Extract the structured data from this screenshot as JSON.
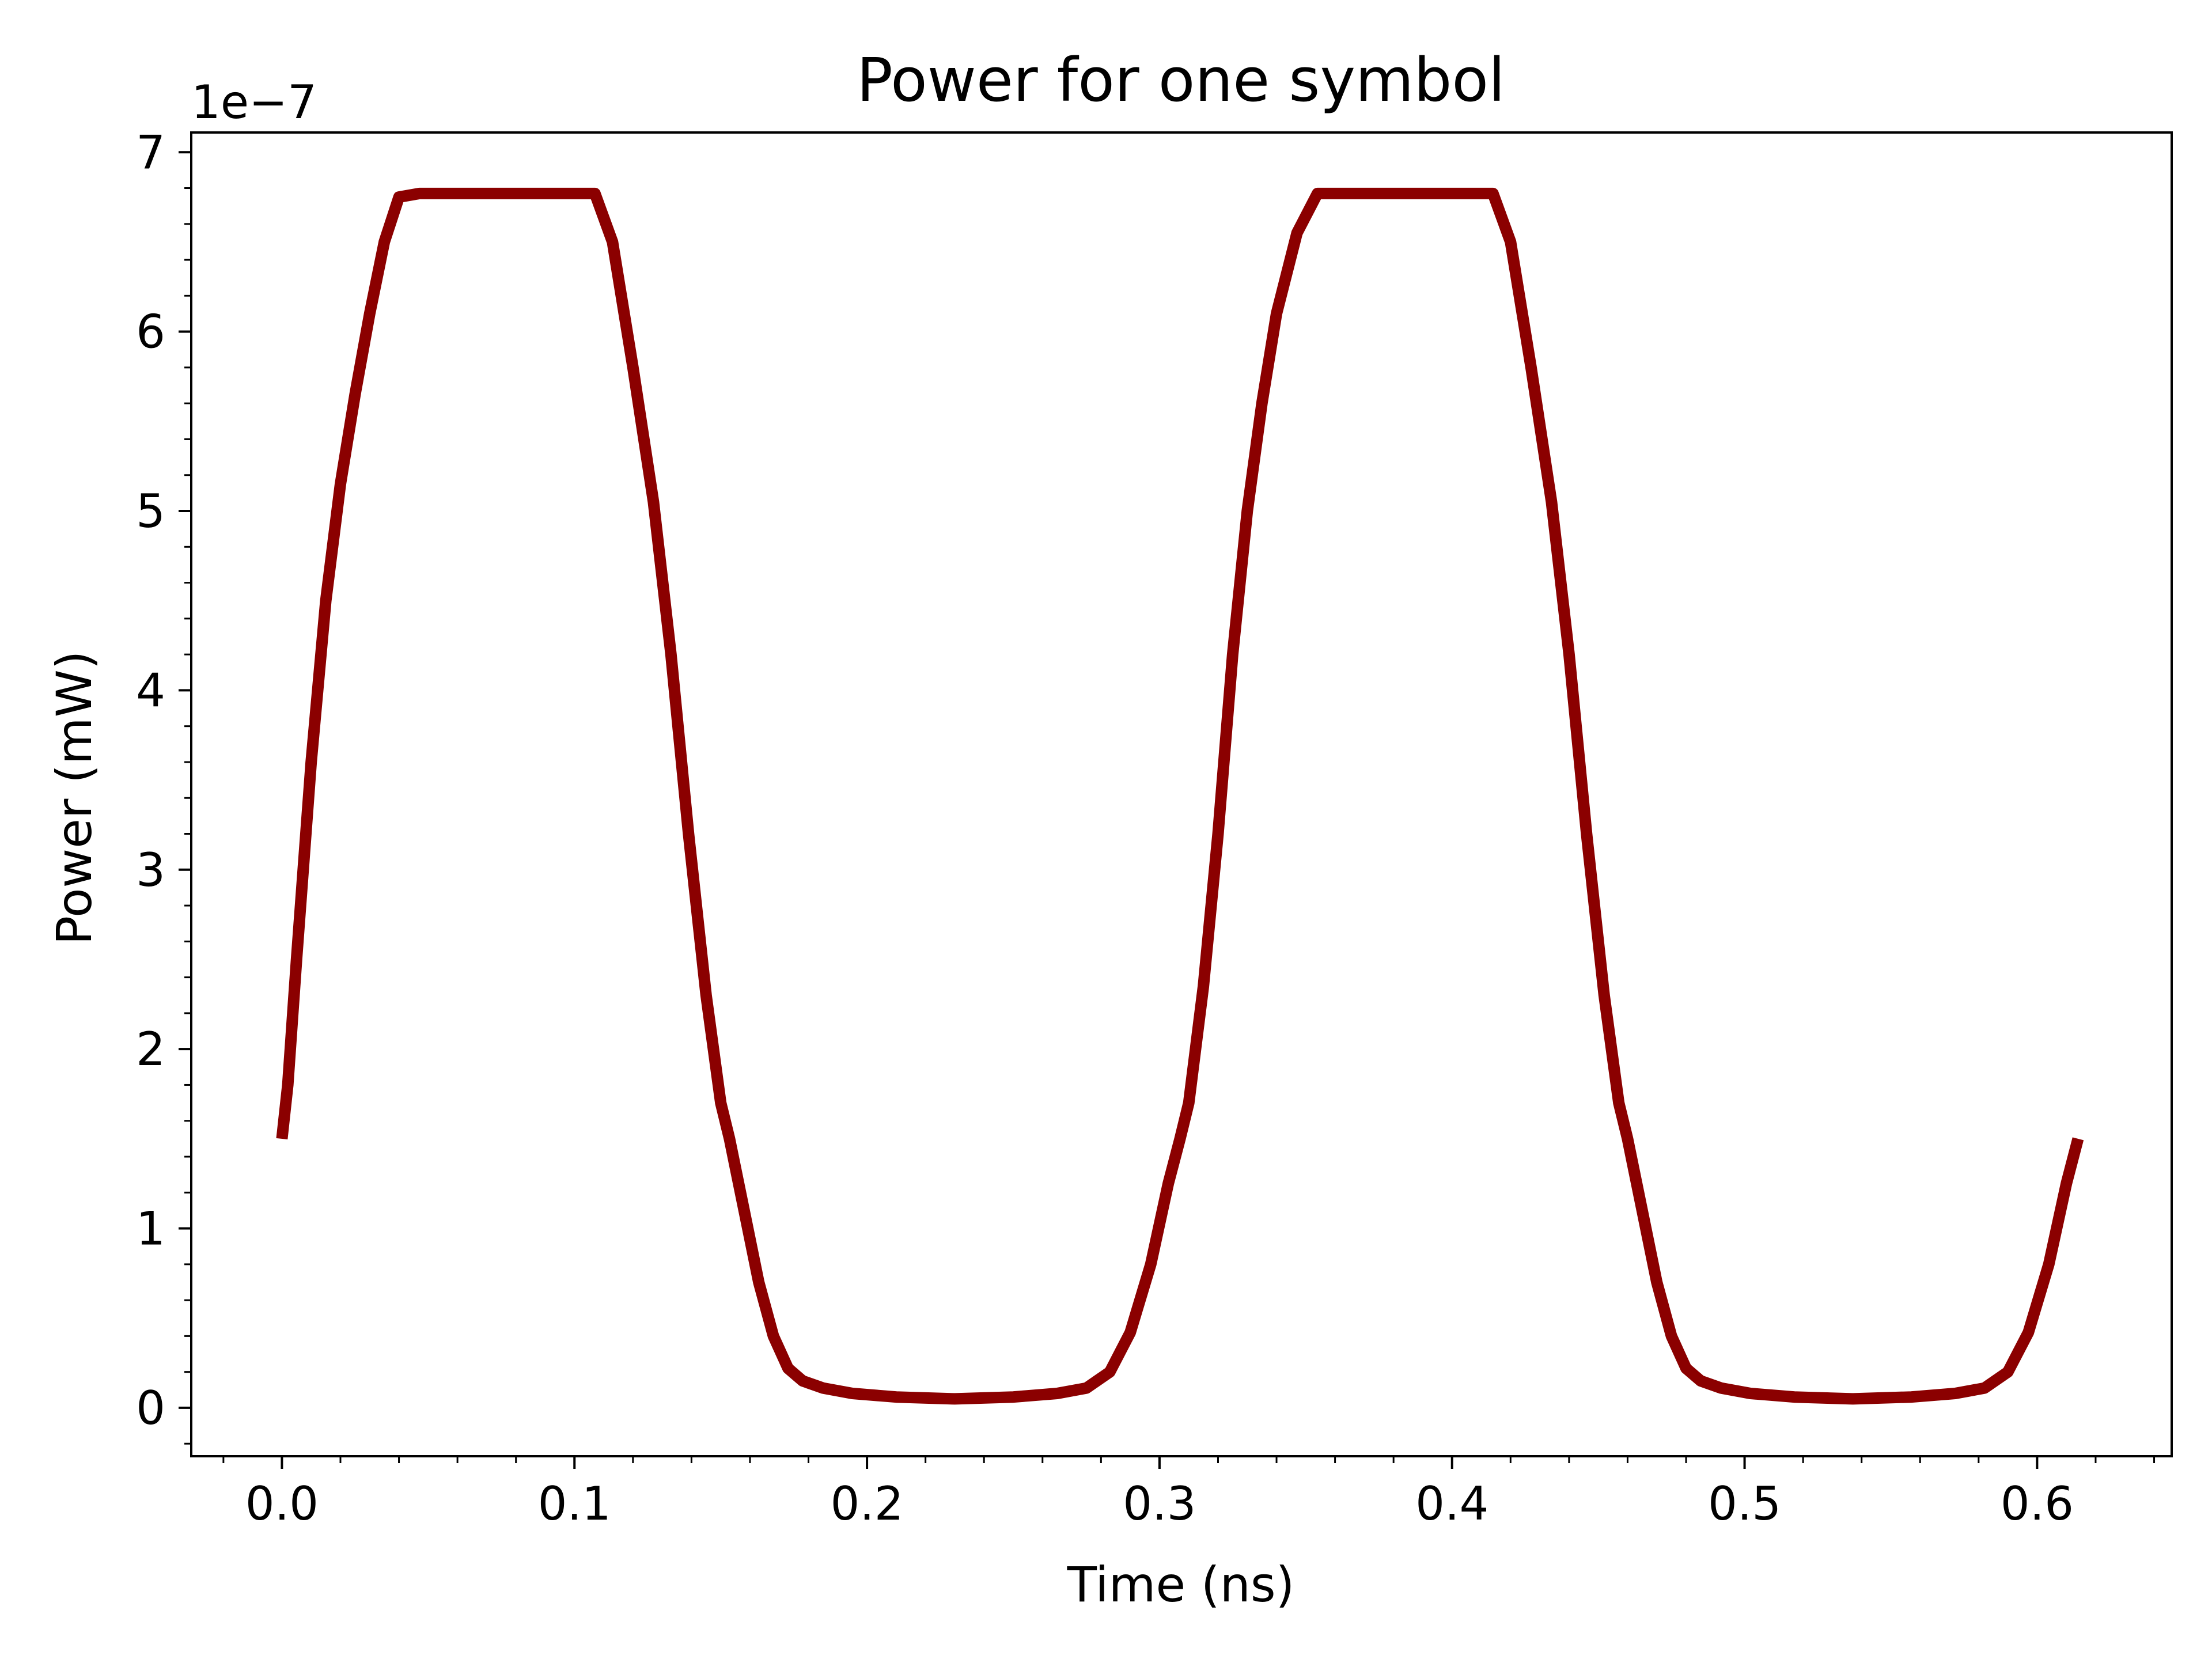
{
  "chart_data": {
    "type": "line",
    "title": "Power for one symbol",
    "xlabel": "Time (ns)",
    "ylabel": "Power (mW)",
    "y_offset_label": "1e−7",
    "y_scale_factor": 1e-07,
    "xlim": [
      -0.031,
      0.646
    ],
    "ylim": [
      -0.27,
      7.11
    ],
    "x_ticks": [
      0.0,
      0.1,
      0.2,
      0.3,
      0.4,
      0.5,
      0.6
    ],
    "x_tick_labels": [
      "0.0",
      "0.1",
      "0.2",
      "0.3",
      "0.4",
      "0.5",
      "0.6"
    ],
    "y_ticks": [
      0,
      1,
      2,
      3,
      4,
      5,
      6,
      7
    ],
    "y_tick_labels": [
      "0",
      "1",
      "2",
      "3",
      "4",
      "5",
      "6",
      "7"
    ],
    "grid": false,
    "colors": {
      "line": "#8b0000",
      "axes": "#000000",
      "background": "#ffffff"
    },
    "series": [
      {
        "x": [
          0.0,
          0.002,
          0.005,
          0.01,
          0.015,
          0.02,
          0.025,
          0.03,
          0.035,
          0.04,
          0.047,
          0.107,
          0.113,
          0.12,
          0.127,
          0.133,
          0.139,
          0.145,
          0.15,
          0.153,
          0.158,
          0.163,
          0.168,
          0.173,
          0.178,
          0.185,
          0.195,
          0.21,
          0.23,
          0.25,
          0.265,
          0.275,
          0.283,
          0.29,
          0.297,
          0.303,
          0.307,
          0.31,
          0.315,
          0.32,
          0.325,
          0.33,
          0.335,
          0.34,
          0.347,
          0.354,
          0.414,
          0.42,
          0.427,
          0.434,
          0.44,
          0.446,
          0.452,
          0.457,
          0.46,
          0.465,
          0.47,
          0.475,
          0.48,
          0.485,
          0.492,
          0.502,
          0.517,
          0.537,
          0.557,
          0.572,
          0.582,
          0.59,
          0.597,
          0.604,
          0.61,
          0.614
        ],
        "y": [
          1.5,
          1.8,
          2.5,
          3.6,
          4.5,
          5.15,
          5.65,
          6.1,
          6.5,
          6.75,
          6.77,
          6.77,
          6.5,
          5.8,
          5.05,
          4.2,
          3.2,
          2.3,
          1.7,
          1.5,
          1.1,
          0.7,
          0.4,
          0.22,
          0.15,
          0.11,
          0.08,
          0.06,
          0.05,
          0.06,
          0.08,
          0.11,
          0.2,
          0.42,
          0.8,
          1.25,
          1.5,
          1.7,
          2.35,
          3.2,
          4.2,
          5.0,
          5.6,
          6.1,
          6.55,
          6.77,
          6.77,
          6.5,
          5.8,
          5.05,
          4.2,
          3.2,
          2.3,
          1.7,
          1.5,
          1.1,
          0.7,
          0.4,
          0.22,
          0.15,
          0.11,
          0.08,
          0.06,
          0.05,
          0.06,
          0.08,
          0.11,
          0.2,
          0.42,
          0.8,
          1.25,
          1.5
        ]
      }
    ]
  }
}
